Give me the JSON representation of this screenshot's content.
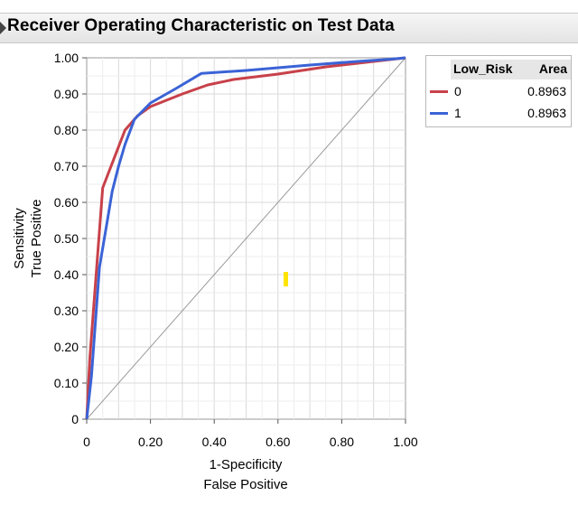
{
  "title": "Receiver Operating Characteristic on Test Data",
  "legend": {
    "header_name": "Low_Risk",
    "header_area": "Area",
    "rows": [
      {
        "label": "0",
        "area": "0.8963",
        "color": "#c8414a"
      },
      {
        "label": "1",
        "area": "0.8963",
        "color": "#3b63d6"
      }
    ]
  },
  "chart_data": {
    "type": "line",
    "title": "Receiver Operating Characteristic on Test Data",
    "xlabel": [
      "1-Specificity",
      "False Positive"
    ],
    "ylabel": [
      "Sensitivity",
      "True Positive"
    ],
    "xlim": [
      0,
      1
    ],
    "ylim": [
      0,
      1
    ],
    "x_ticks": [
      "0",
      "0.20",
      "0.40",
      "0.60",
      "0.80",
      "1.00"
    ],
    "y_ticks": [
      "0",
      "0.10",
      "0.20",
      "0.30",
      "0.40",
      "0.50",
      "0.60",
      "0.70",
      "0.80",
      "0.90",
      "1.00"
    ],
    "grid": true,
    "legend_placement": "right",
    "diagonal_reference": true,
    "series": [
      {
        "name": "0",
        "color": "#c8414a",
        "x": [
          0,
          0.01,
          0.05,
          0.12,
          0.16,
          0.2,
          0.3,
          0.38,
          0.46,
          0.6,
          0.75,
          0.9,
          1.0
        ],
        "y": [
          0,
          0.17,
          0.64,
          0.8,
          0.84,
          0.865,
          0.9,
          0.925,
          0.94,
          0.955,
          0.975,
          0.99,
          1.0
        ]
      },
      {
        "name": "1",
        "color": "#3b63d6",
        "x": [
          0,
          0.015,
          0.04,
          0.065,
          0.08,
          0.1,
          0.12,
          0.15,
          0.2,
          0.28,
          0.36,
          0.5,
          0.7,
          0.85,
          0.95,
          1.0
        ],
        "y": [
          0,
          0.12,
          0.42,
          0.55,
          0.63,
          0.7,
          0.76,
          0.83,
          0.875,
          0.915,
          0.957,
          0.965,
          0.98,
          0.99,
          0.996,
          1.0
        ]
      }
    ]
  }
}
